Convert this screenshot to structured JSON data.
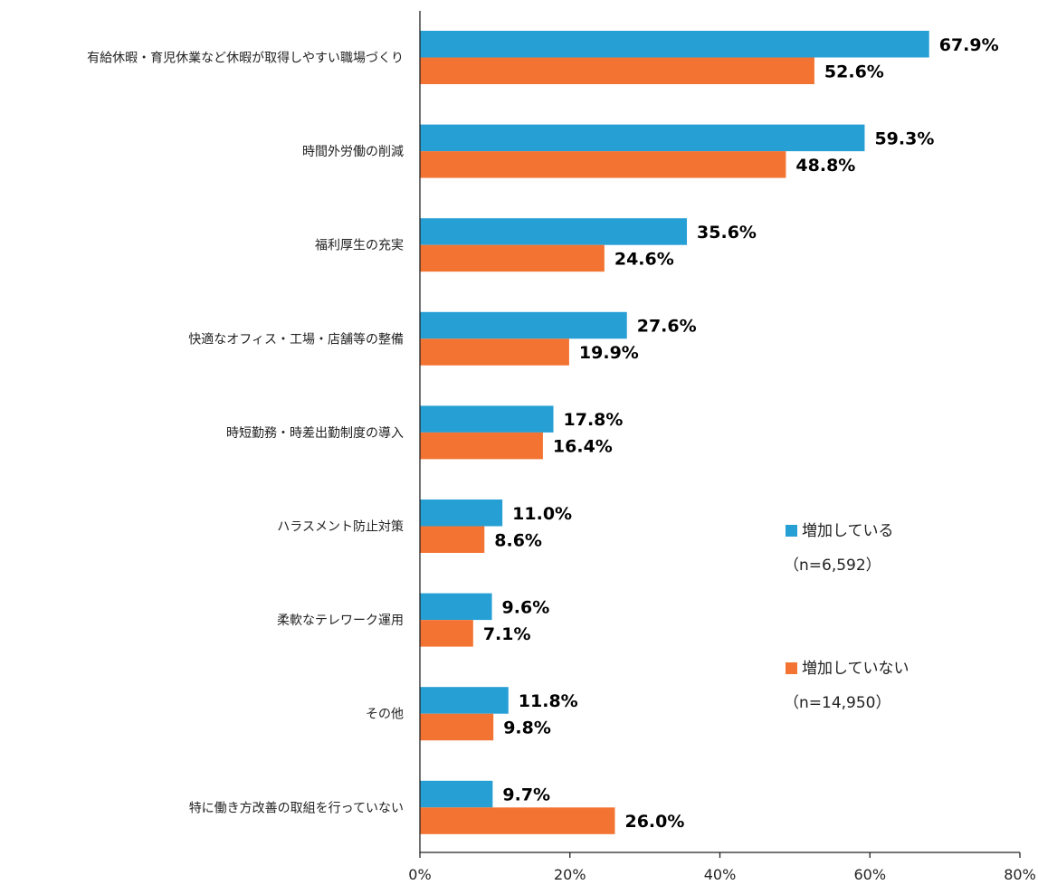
{
  "chart_data": {
    "type": "bar",
    "orientation": "horizontal",
    "categories": [
      "有給休暇・育児休業など休暇が取得しやすい職場づくり",
      "時間外労働の削減",
      "福利厚生の充実",
      "快適なオフィス・工場・店舗等の整備",
      "時短勤務・時差出勤制度の導入",
      "ハラスメント防止対策",
      "柔軟なテレワーク運用",
      "その他",
      "特に働き方改善の取組を行っていない"
    ],
    "series": [
      {
        "name": "増加している",
        "sub": "（n=6,592）",
        "color": "#269fd5",
        "values": [
          67.9,
          59.3,
          35.6,
          27.6,
          17.8,
          11.0,
          9.6,
          11.8,
          9.7
        ],
        "labels": [
          "67.9%",
          "59.3%",
          "35.6%",
          "27.6%",
          "17.8%",
          "11.0%",
          "9.6%",
          "11.8%",
          "9.7%"
        ]
      },
      {
        "name": "増加していない",
        "sub": "（n=14,950）",
        "color": "#f37432",
        "values": [
          52.6,
          48.8,
          24.6,
          19.9,
          16.4,
          8.6,
          7.1,
          9.8,
          26.0
        ],
        "labels": [
          "52.6%",
          "48.8%",
          "24.6%",
          "19.9%",
          "16.4%",
          "8.6%",
          "7.1%",
          "9.8%",
          "26.0%"
        ]
      }
    ],
    "xlim": [
      0,
      80
    ],
    "xticks": [
      "0%",
      "20%",
      "40%",
      "60%",
      "80%"
    ],
    "xtick_values": [
      0,
      20,
      40,
      60,
      80
    ],
    "grid": false,
    "legend_position": "right"
  }
}
